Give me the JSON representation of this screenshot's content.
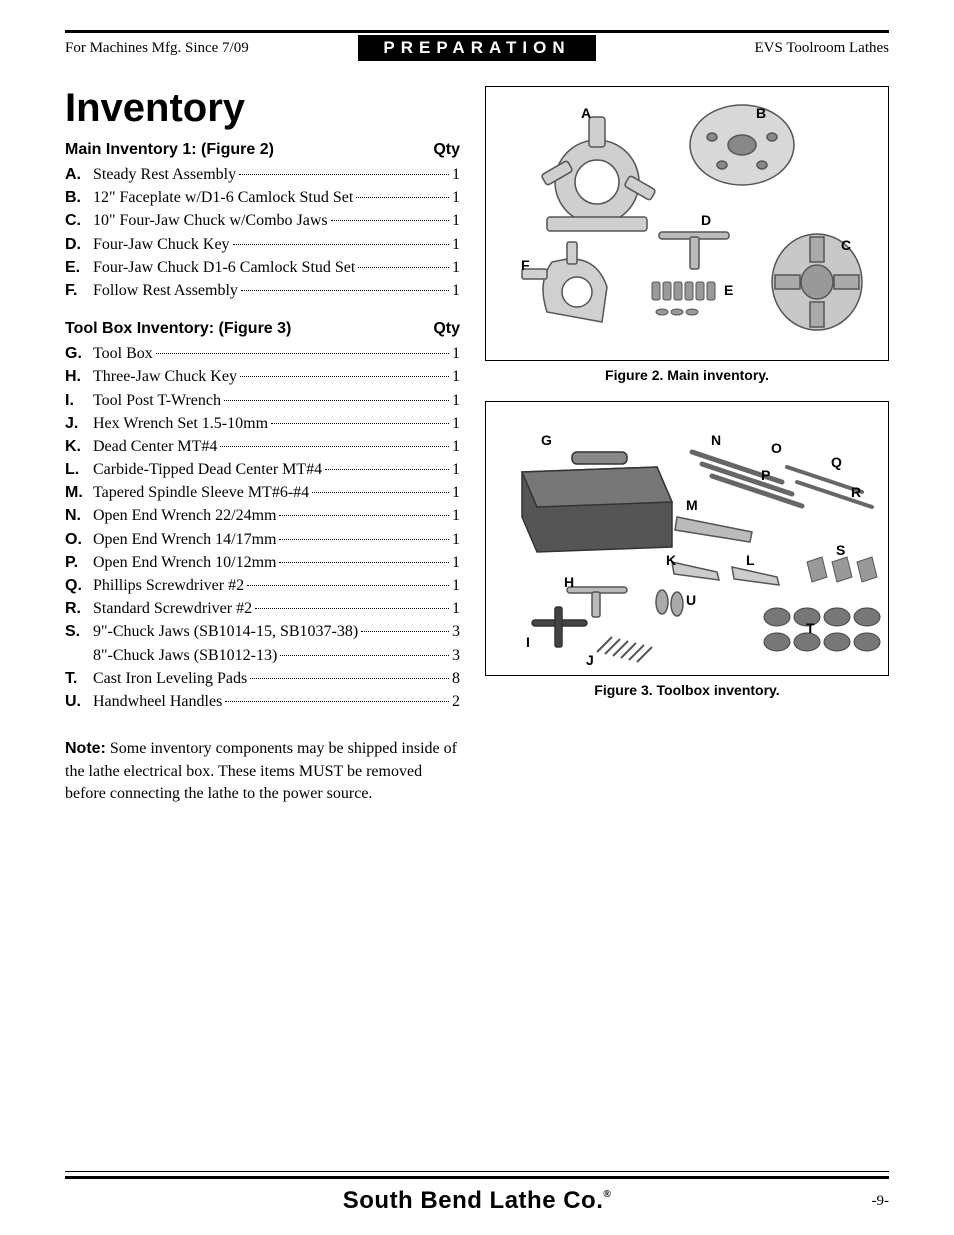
{
  "header": {
    "left": "For Machines Mfg. Since 7/09",
    "center": "PREPARATION",
    "right": "EVS Toolroom Lathes"
  },
  "title": "Inventory",
  "section1": {
    "heading": "Main Inventory 1: (Figure 2)",
    "qty_label": "Qty",
    "items": [
      {
        "letter": "A.",
        "text": "Steady Rest Assembly",
        "qty": "1"
      },
      {
        "letter": "B.",
        "text": "12\" Faceplate w/D1-6 Camlock Stud Set",
        "qty": "1"
      },
      {
        "letter": "C.",
        "text": "10\" Four-Jaw Chuck w/Combo Jaws",
        "qty": "1"
      },
      {
        "letter": "D.",
        "text": "Four-Jaw Chuck Key",
        "qty": "1"
      },
      {
        "letter": "E.",
        "text": "Four-Jaw Chuck D1-6 Camlock Stud Set",
        "qty": "1"
      },
      {
        "letter": "F.",
        "text": "Follow Rest Assembly",
        "qty": "1"
      }
    ]
  },
  "section2": {
    "heading": "Tool Box Inventory: (Figure 3)",
    "qty_label": "Qty",
    "items": [
      {
        "letter": "G.",
        "text": "Tool Box",
        "qty": "1"
      },
      {
        "letter": "H.",
        "text": "Three-Jaw Chuck Key",
        "qty": "1"
      },
      {
        "letter": "I.",
        "text": "Tool Post T-Wrench",
        "qty": "1"
      },
      {
        "letter": "J.",
        "text": "Hex Wrench Set 1.5-10mm",
        "qty": "1"
      },
      {
        "letter": "K.",
        "text": "Dead Center MT#4",
        "qty": "1"
      },
      {
        "letter": "L.",
        "text": "Carbide-Tipped Dead Center MT#4",
        "qty": "1"
      },
      {
        "letter": "M.",
        "text": "Tapered Spindle Sleeve MT#6-#4",
        "qty": "1"
      },
      {
        "letter": "N.",
        "text": "Open End Wrench 22/24mm",
        "qty": "1"
      },
      {
        "letter": "O.",
        "text": "Open End Wrench 14/17mm",
        "qty": "1"
      },
      {
        "letter": "P.",
        "text": "Open End Wrench 10/12mm",
        "qty": "1"
      },
      {
        "letter": "Q.",
        "text": "Phillips Screwdriver #2",
        "qty": "1"
      },
      {
        "letter": "R.",
        "text": "Standard Screwdriver #2",
        "qty": "1"
      },
      {
        "letter": "S.",
        "text": "9\"-Chuck Jaws (SB1014-15, SB1037-38)",
        "qty": "3"
      },
      {
        "letter": "",
        "text": "8\"-Chuck Jaws (SB1012-13)",
        "qty": "3"
      },
      {
        "letter": "T.",
        "text": "Cast Iron Leveling Pads",
        "qty": "8"
      },
      {
        "letter": "U.",
        "text": "Handwheel Handles",
        "qty": "2"
      }
    ]
  },
  "note": {
    "label": "Note:",
    "text": " Some inventory components may be shipped inside of the lathe electrical box. These items MUST be removed before connecting the lathe to the power source."
  },
  "figure2": {
    "caption": "Figure 2. Main inventory.",
    "labels": {
      "A": "A",
      "B": "B",
      "C": "C",
      "D": "D",
      "E": "E",
      "F": "F"
    }
  },
  "figure3": {
    "caption": "Figure 3. Toolbox inventory.",
    "labels": {
      "G": "G",
      "H": "H",
      "I": "I",
      "J": "J",
      "K": "K",
      "L": "L",
      "M": "M",
      "N": "N",
      "O": "O",
      "P": "P",
      "Q": "Q",
      "R": "R",
      "S": "S",
      "T": "T",
      "U": "U"
    }
  },
  "footer": {
    "brand": "South Bend Lathe Co.",
    "page": "-9-"
  }
}
